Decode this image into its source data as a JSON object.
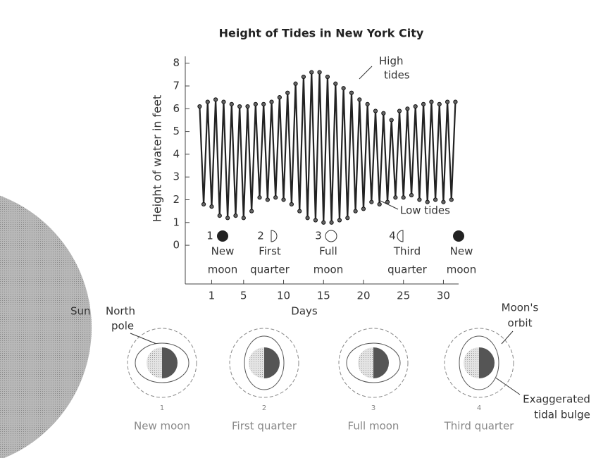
{
  "chart_data": {
    "type": "line",
    "title": "Height of Tides in New York City",
    "y_label": "Height of water in feet",
    "x_label": "Days",
    "x": [
      -0.5,
      0,
      0.5,
      1,
      1.5,
      2,
      2.5,
      3,
      3.5,
      4,
      4.5,
      5,
      5.5,
      6,
      6.5,
      7,
      7.5,
      8,
      8.5,
      9,
      9.5,
      10,
      10.5,
      11,
      11.5,
      12,
      12.5,
      13,
      13.5,
      14,
      14.5,
      15,
      15.5,
      16,
      16.5,
      17,
      17.5,
      18,
      18.5,
      19,
      19.5,
      20,
      20.5,
      21,
      21.5,
      22,
      22.5,
      23,
      23.5,
      24,
      24.5,
      25,
      25.5,
      26,
      26.5,
      27,
      27.5,
      28,
      28.5,
      29,
      29.5,
      30,
      30.5,
      31,
      31.5
    ],
    "values": [
      6.1,
      1.8,
      6.3,
      1.7,
      6.4,
      1.3,
      6.3,
      1.2,
      6.2,
      1.3,
      6.1,
      1.2,
      6.1,
      1.5,
      6.2,
      2.1,
      6.2,
      2.0,
      6.3,
      2.1,
      6.5,
      2.0,
      6.7,
      1.8,
      7.1,
      1.5,
      7.4,
      1.2,
      7.6,
      1.1,
      7.6,
      1.0,
      7.4,
      1.0,
      7.1,
      1.1,
      6.9,
      1.2,
      6.7,
      1.5,
      6.4,
      1.6,
      6.2,
      1.9,
      5.9,
      1.8,
      5.8,
      1.9,
      5.5,
      2.1,
      5.9,
      2.1,
      6.0,
      2.2,
      6.1,
      2.0,
      6.2,
      1.9,
      6.3,
      2.0,
      6.2,
      1.9,
      6.3,
      2.0,
      6.3
    ],
    "color": "#222222",
    "xlim": [
      -2.3,
      31.9
    ],
    "ylim": [
      -1.7,
      8.3
    ],
    "xticks": [
      1,
      5,
      10,
      15,
      20,
      25,
      30
    ],
    "yticks": [
      0,
      1,
      2,
      3,
      4,
      5,
      6,
      7,
      8
    ],
    "annotations": {
      "high": [
        "High",
        "tides"
      ],
      "low": "Low tides"
    },
    "phases": [
      {
        "number": "1",
        "name": [
          "New",
          "moon"
        ]
      },
      {
        "number": "2",
        "name": [
          "First",
          "quarter"
        ]
      },
      {
        "number": "3",
        "name": [
          "Full",
          "moon"
        ]
      },
      {
        "number": "4",
        "name": [
          "Third",
          "quarter"
        ]
      },
      {
        "name": [
          "New",
          "moon"
        ]
      }
    ]
  },
  "diagram": {
    "sun": "Sun",
    "north_pole": [
      "North",
      "pole"
    ],
    "orbit": [
      "Moon's",
      "orbit"
    ],
    "bulge": [
      "Exaggerated",
      "tidal bulge"
    ],
    "panels": [
      {
        "number": "1",
        "caption": "New moon"
      },
      {
        "number": "2",
        "caption": "First quarter"
      },
      {
        "number": "3",
        "caption": "Full moon"
      },
      {
        "number": "4",
        "caption": "Third quarter"
      }
    ]
  }
}
